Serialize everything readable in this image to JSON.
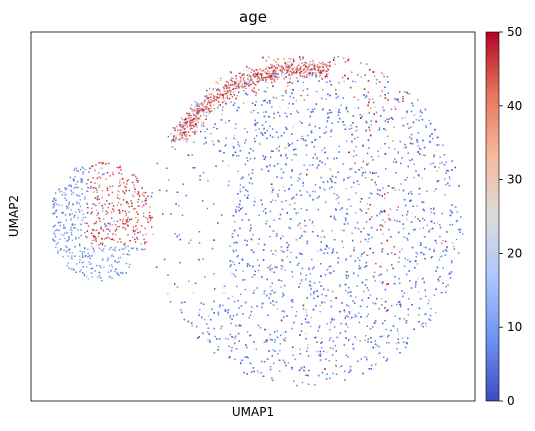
{
  "chart_data": {
    "type": "scatter",
    "title": "age",
    "xlabel": "UMAP1",
    "ylabel": "UMAP2",
    "colorbar": {
      "colormap": "coolwarm",
      "range": [
        0,
        50
      ],
      "ticks": [
        0,
        10,
        20,
        30,
        40,
        50
      ],
      "tick_labels": [
        "0",
        "10",
        "20",
        "30",
        "40",
        "50"
      ],
      "stops": [
        "#3b4cc0",
        "#6f92f3",
        "#aac7fd",
        "#dddcdc",
        "#f7b89c",
        "#e7745b",
        "#b40426"
      ]
    },
    "x_ticks_shown": false,
    "y_ticks_shown": false,
    "grid": false,
    "legend": "none",
    "clusters": [
      {
        "name": "main",
        "x_range": [
          0.0,
          1.0
        ],
        "y_range": [
          0.0,
          1.0
        ],
        "dominant_age": 8,
        "share_of_points": 0.7
      },
      {
        "name": "top-arc",
        "x_range": [
          0.2,
          0.9
        ],
        "y_range": [
          0.85,
          1.0
        ],
        "dominant_age": 45,
        "share_of_points": 0.15
      },
      {
        "name": "left-island",
        "x_range": [
          0.0,
          0.25
        ],
        "y_range": [
          0.3,
          0.75
        ],
        "dominant_age": 45,
        "share_of_points": 0.15
      }
    ]
  }
}
